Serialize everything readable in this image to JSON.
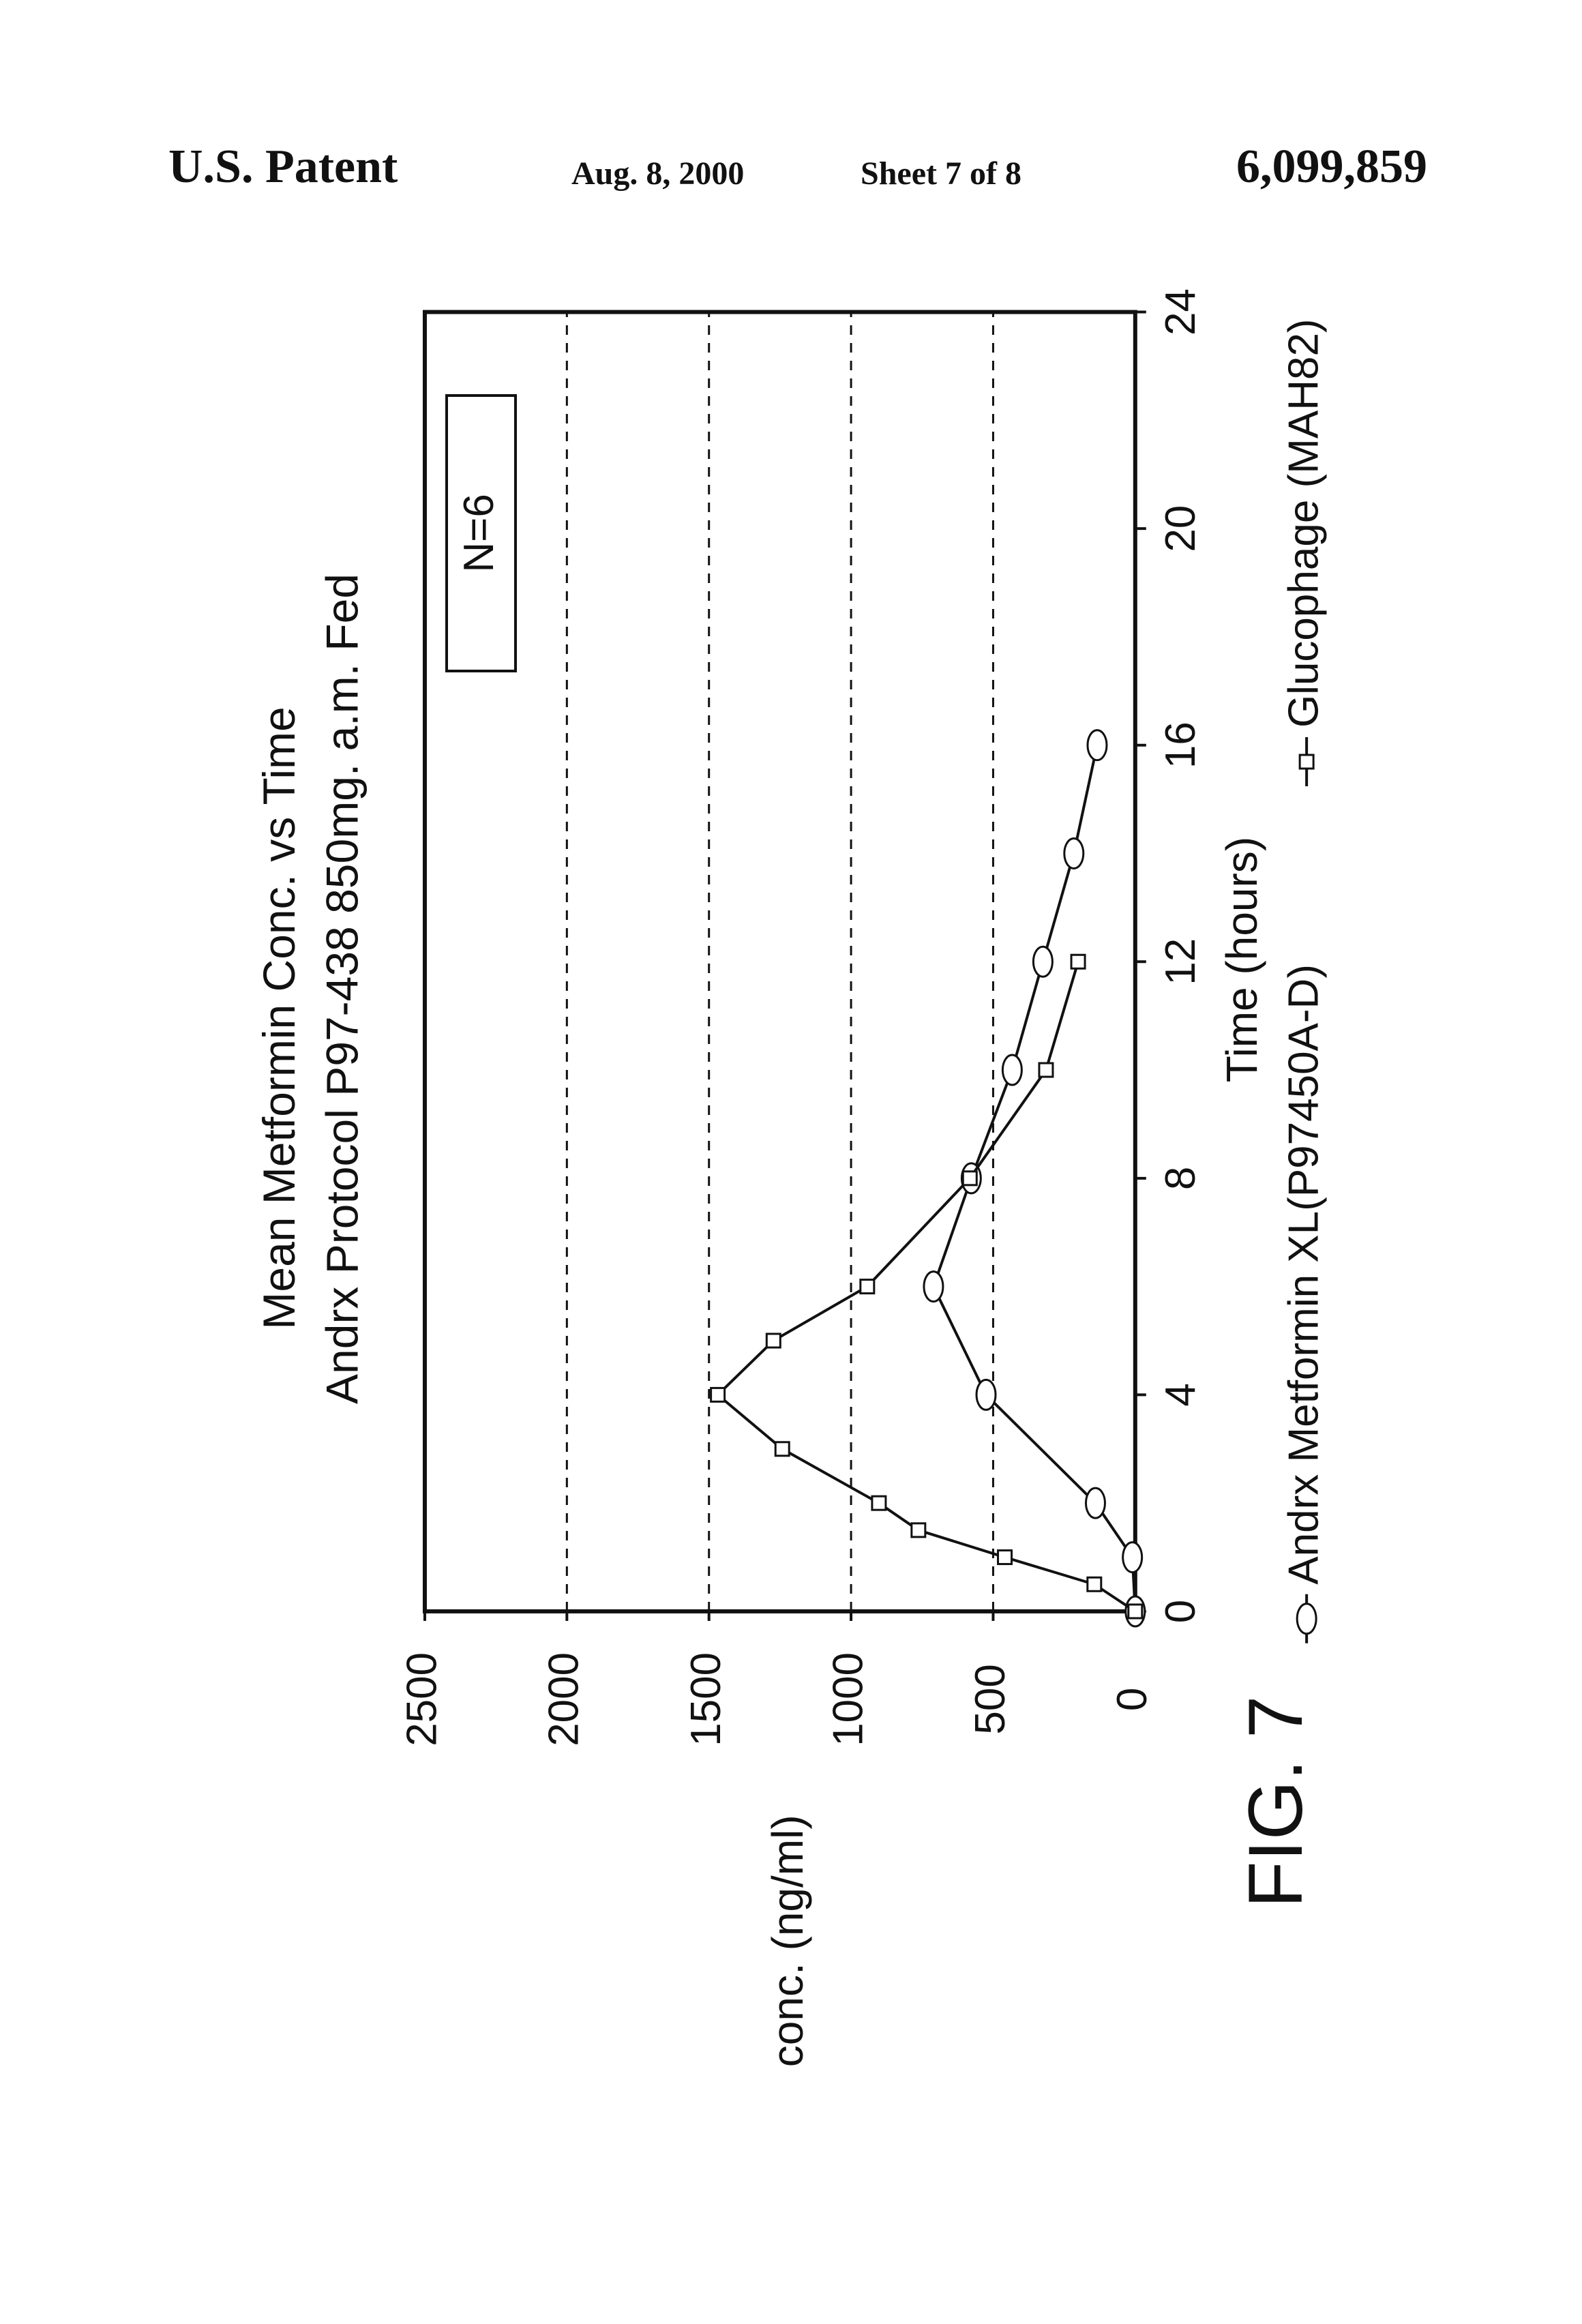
{
  "header": {
    "left": "U.S. Patent",
    "date": "Aug. 8, 2000",
    "sheet": "Sheet 7 of 8",
    "number": "6,099,859"
  },
  "figure_label": "FIG. 7",
  "chart_data": {
    "type": "line",
    "title": "Mean Metformin Conc. vs Time",
    "subtitle": "Andrx Protocol P97-438 850mg. a.m. Fed",
    "x_label": "Time (hours)",
    "y_label": "conc. (ng/ml)",
    "annotation": "N=6",
    "xlim": [
      0,
      24
    ],
    "xticks": [
      0,
      4,
      8,
      12,
      16,
      20,
      24
    ],
    "ylim": [
      0,
      2500
    ],
    "yticks": [
      0,
      500,
      1000,
      1500,
      2000,
      2500
    ],
    "grid": true,
    "series": [
      {
        "name": "Andrx Metformin XL(P97450A-D)",
        "marker": "circle",
        "color": "#111111",
        "x": [
          0,
          1,
          2,
          4,
          6,
          8,
          10,
          12,
          14,
          16
        ],
        "values": [
          0,
          10,
          140,
          525,
          710,
          577,
          433,
          325,
          216,
          134
        ]
      },
      {
        "name": "Glucophage (MAH82)",
        "marker": "square",
        "color": "#111111",
        "x": [
          0,
          0.5,
          1,
          1.5,
          2,
          3,
          4,
          5,
          6,
          8,
          10,
          12
        ],
        "values": [
          0,
          144,
          459,
          763,
          902,
          1242,
          1469,
          1273,
          943,
          582,
          314,
          201
        ]
      }
    ]
  }
}
